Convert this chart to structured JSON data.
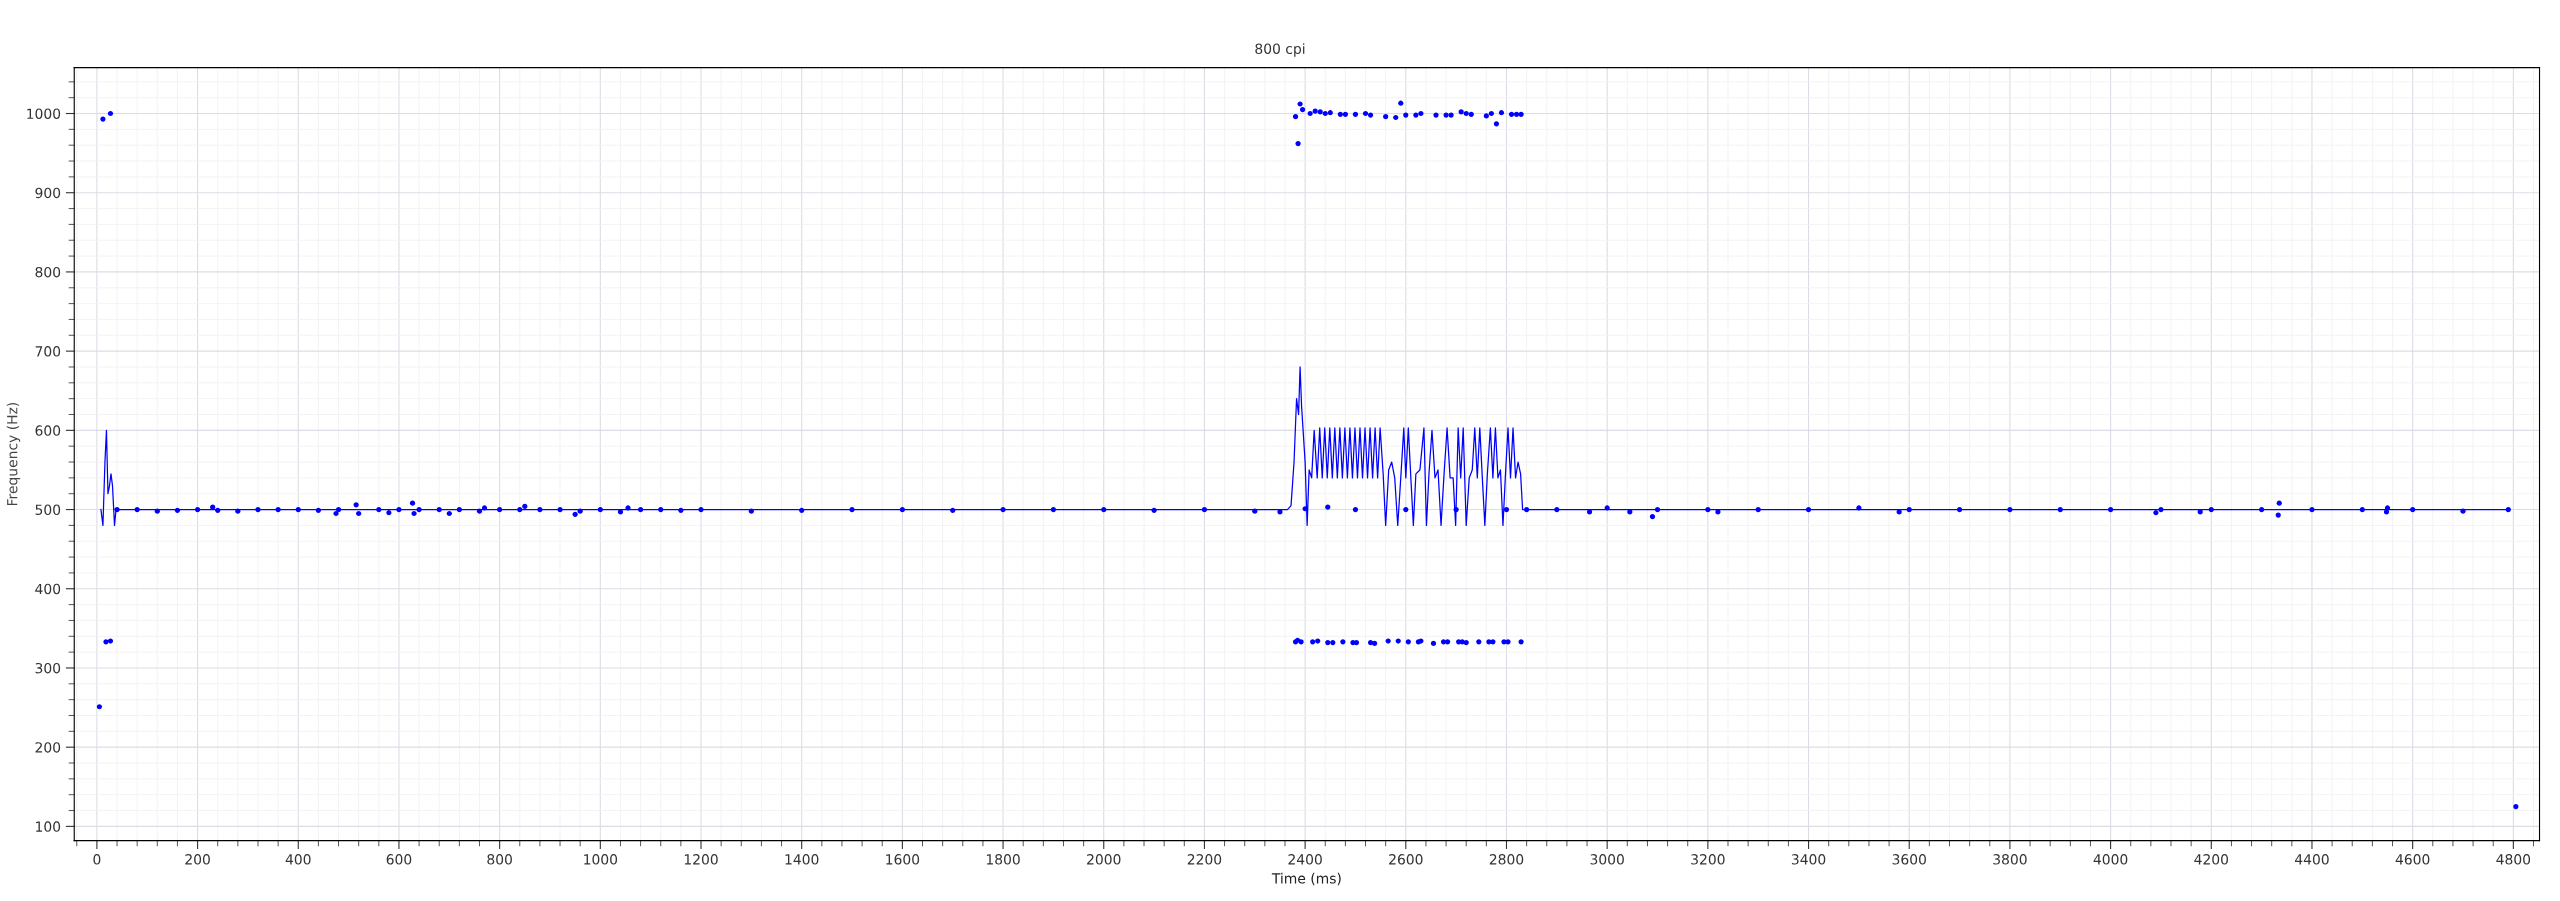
{
  "chart_data": {
    "type": "scatter",
    "subtitle": "800 cpi",
    "xlabel": "Time (ms)",
    "ylabel": "Frequency (Hz)",
    "xlim": [
      -45,
      4852
    ],
    "ylim": [
      82,
      1058
    ],
    "xticks": [
      0,
      200,
      400,
      600,
      800,
      1000,
      1200,
      1400,
      1600,
      1800,
      2000,
      2200,
      2400,
      2600,
      2800,
      3000,
      3200,
      3400,
      3600,
      3800,
      4000,
      4200,
      4400,
      4600,
      4800
    ],
    "yticks": [
      100,
      200,
      300,
      400,
      500,
      600,
      700,
      800,
      900,
      1000
    ],
    "grid": true,
    "marker": "circle",
    "line_style": "solid",
    "series": [
      {
        "type": "line",
        "marker": "none",
        "color": "#0000ff",
        "x": [
          8,
          12,
          16,
          19,
          22,
          25,
          28,
          31,
          35,
          38,
          45,
          500,
          1000,
          1500,
          2000,
          2365,
          2372,
          2378,
          2383,
          2387,
          2390,
          2393,
          2396,
          2400,
          2404,
          2408,
          2413,
          2418,
          2424,
          2429,
          2434,
          2439,
          2444,
          2449,
          2454,
          2459,
          2464,
          2469,
          2474,
          2479,
          2484,
          2489,
          2494,
          2499,
          2504,
          2509,
          2514,
          2519,
          2524,
          2529,
          2534,
          2539,
          2544,
          2549,
          2555,
          2560,
          2566,
          2572,
          2578,
          2584,
          2590,
          2596,
          2600,
          2605,
          2610,
          2615,
          2620,
          2628,
          2636,
          2641,
          2646,
          2652,
          2658,
          2664,
          2670,
          2676,
          2682,
          2688,
          2694,
          2699,
          2704,
          2709,
          2714,
          2720,
          2726,
          2732,
          2737,
          2742,
          2747,
          2752,
          2757,
          2762,
          2768,
          2773,
          2778,
          2783,
          2788,
          2793,
          2798,
          2803,
          2808,
          2813,
          2818,
          2823,
          2828,
          2832,
          2836,
          3500,
          4000,
          4790
        ],
        "values": [
          500,
          480,
          560,
          600,
          520,
          530,
          545,
          530,
          480,
          500,
          500,
          500,
          500,
          500,
          500,
          500,
          505,
          560,
          640,
          620,
          680,
          630,
          600,
          560,
          480,
          550,
          540,
          600,
          540,
          603,
          540,
          603,
          540,
          603,
          540,
          603,
          540,
          603,
          540,
          603,
          540,
          603,
          540,
          603,
          540,
          603,
          540,
          603,
          540,
          603,
          540,
          603,
          540,
          603,
          545,
          480,
          550,
          560,
          540,
          480,
          540,
          603,
          540,
          603,
          540,
          480,
          545,
          550,
          603,
          480,
          545,
          600,
          540,
          550,
          480,
          545,
          603,
          540,
          540,
          480,
          603,
          540,
          603,
          480,
          540,
          550,
          603,
          540,
          603,
          540,
          480,
          545,
          603,
          540,
          603,
          540,
          550,
          480,
          545,
          603,
          540,
          603,
          540,
          560,
          545,
          500,
          500,
          500,
          500,
          500
        ]
      },
      {
        "color": "#0000ff",
        "x": [
          5,
          18,
          27
        ],
        "values": [
          251,
          333,
          334
        ]
      },
      {
        "color": "#0000ff",
        "x": [
          12,
          27,
          2381,
          2386,
          2390,
          2395,
          2410,
          2420,
          2430,
          2440,
          2450,
          2470,
          2480,
          2500,
          2520,
          2530,
          2560,
          2580,
          2590,
          2600,
          2620,
          2630,
          2660,
          2680,
          2690,
          2710,
          2720,
          2730,
          2760,
          2770,
          2780,
          2790,
          2810,
          2820,
          2829
        ],
        "values": [
          993,
          1000,
          996,
          962,
          1012,
          1005,
          1000,
          1003,
          1002,
          1000,
          1001,
          999,
          999,
          999,
          1000,
          998,
          996,
          995,
          1013,
          998,
          998,
          1000,
          998,
          998,
          998,
          1002,
          1000,
          999,
          997,
          1000,
          987,
          1001,
          999,
          999,
          999
        ]
      },
      {
        "color": "#0000ff",
        "x": [
          2381,
          2385,
          2392,
          2415,
          2425,
          2445,
          2455,
          2475,
          2495,
          2502,
          2530,
          2538,
          2565,
          2585,
          2605,
          2625,
          2630,
          2655,
          2675,
          2683,
          2705,
          2712,
          2720,
          2745,
          2765,
          2773,
          2795,
          2803,
          2829
        ],
        "values": [
          333,
          335,
          333,
          333,
          334,
          332,
          332,
          333,
          332,
          332,
          332,
          331,
          334,
          334,
          333,
          333,
          334,
          331,
          333,
          333,
          333,
          333,
          332,
          333,
          333,
          333,
          333,
          333,
          333
        ]
      },
      {
        "color": "#0000ff",
        "x": [
          4805
        ],
        "values": [
          125
        ]
      },
      {
        "color": "#0000ff",
        "x": [
          40,
          80,
          120,
          160,
          200,
          230,
          240,
          280,
          320,
          360,
          400,
          440,
          475,
          480,
          515,
          520,
          560,
          580,
          600,
          627,
          630,
          640,
          680,
          700,
          720,
          760,
          770,
          800,
          840,
          850,
          880,
          920,
          950,
          960,
          1000,
          1040,
          1055,
          1080,
          1120,
          1160,
          1200,
          1300,
          1400,
          1500,
          1600,
          1700,
          1800,
          1900,
          2000,
          2100,
          2200,
          2300,
          2350,
          2400,
          2445,
          2500,
          2600,
          2700,
          2800,
          2840,
          2900,
          2965,
          3000,
          3045,
          3090,
          3100,
          3200,
          3220,
          3300,
          3400,
          3500,
          3580,
          3600,
          3700,
          3800,
          3900,
          4000,
          4090,
          4100,
          4178,
          4200,
          4300,
          4333,
          4335,
          4400,
          4500,
          4548,
          4550,
          4600,
          4700,
          4790
        ],
        "values": [
          500,
          500,
          498,
          499,
          500,
          503,
          499,
          498,
          500,
          500,
          500,
          499,
          495,
          500,
          506,
          495,
          500,
          496,
          500,
          508,
          495,
          500,
          500,
          495,
          500,
          498,
          502,
          500,
          500,
          504,
          500,
          500,
          494,
          498,
          500,
          497,
          502,
          500,
          500,
          499,
          500,
          498,
          499,
          500,
          500,
          499,
          500,
          500,
          500,
          499,
          500,
          498,
          497,
          501,
          503,
          500,
          500,
          500,
          500,
          500,
          500,
          497,
          502,
          497,
          491,
          500,
          500,
          497,
          500,
          500,
          502,
          497,
          500,
          500,
          500,
          500,
          500,
          496,
          500,
          497,
          500,
          500,
          493,
          508,
          500,
          500,
          497,
          502,
          500,
          498,
          500
        ]
      }
    ]
  }
}
